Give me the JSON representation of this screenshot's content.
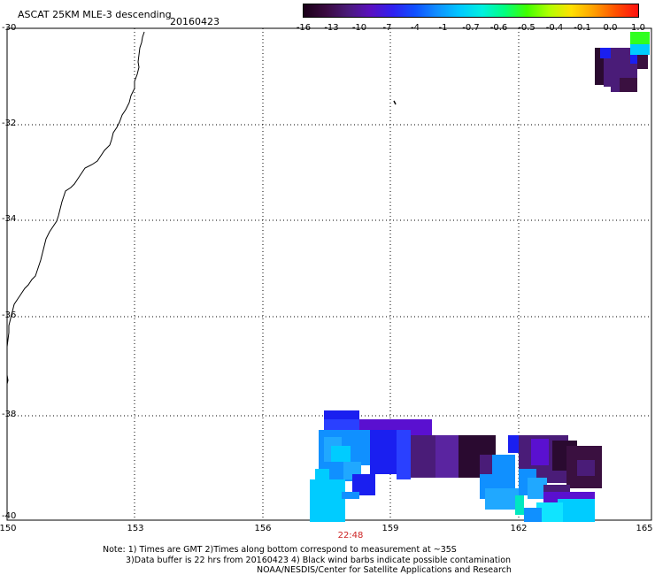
{
  "header": {
    "title": "ASCAT 25KM MLE-3 descending",
    "date": "20160423"
  },
  "colorbar": {
    "labels": [
      "-16",
      "-13",
      "-10",
      "-7",
      "-4",
      "-1",
      "-0.7",
      "-0.6",
      "-0.5",
      "-0.4",
      "-0.1",
      "0.0",
      "1.0"
    ],
    "colors": [
      "#1a0018",
      "#3a0a40",
      "#4a1a7a",
      "#5a10c0",
      "#3020f0",
      "#1050ff",
      "#1090ff",
      "#00c8ff",
      "#00f0e0",
      "#00ff80",
      "#40ff00",
      "#b0ff00",
      "#ffe000",
      "#ffa000",
      "#ff5000",
      "#ff1010"
    ]
  },
  "axes": {
    "lat_labels": [
      "-30",
      "-32",
      "-34",
      "-36",
      "-38",
      "-40"
    ],
    "lon_labels": [
      "150",
      "153",
      "156",
      "159",
      "162",
      "165"
    ]
  },
  "time_label": "22:48",
  "notes": {
    "line1": "Note: 1) Times are GMT 2)Times along bottom correspond to measurement at ~35S",
    "line2": "3)Data buffer is 22 hrs from 20160423 4) Black wind barbs indicate possible contamination",
    "line3": "NOAA/NESDIS/Center for Satellite Applications and Research"
  }
}
